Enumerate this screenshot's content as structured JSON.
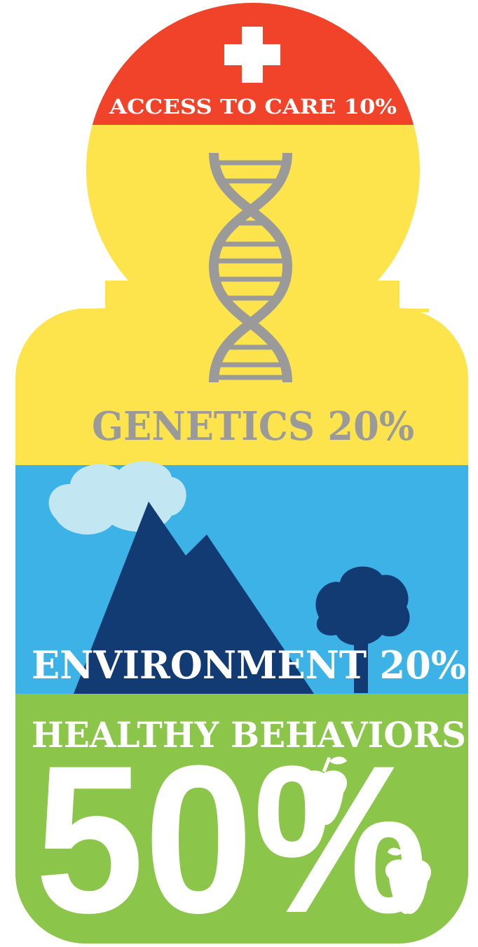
{
  "sections": [
    {
      "label": "ACCESS TO CARE 10%"
    },
    {
      "label": "GENETICS 20%"
    },
    {
      "label": "ENVIRONMENT 20%"
    }
  ],
  "healthy": {
    "label": "HEALTHY BEHAVIORS",
    "percent": "50%"
  }
}
